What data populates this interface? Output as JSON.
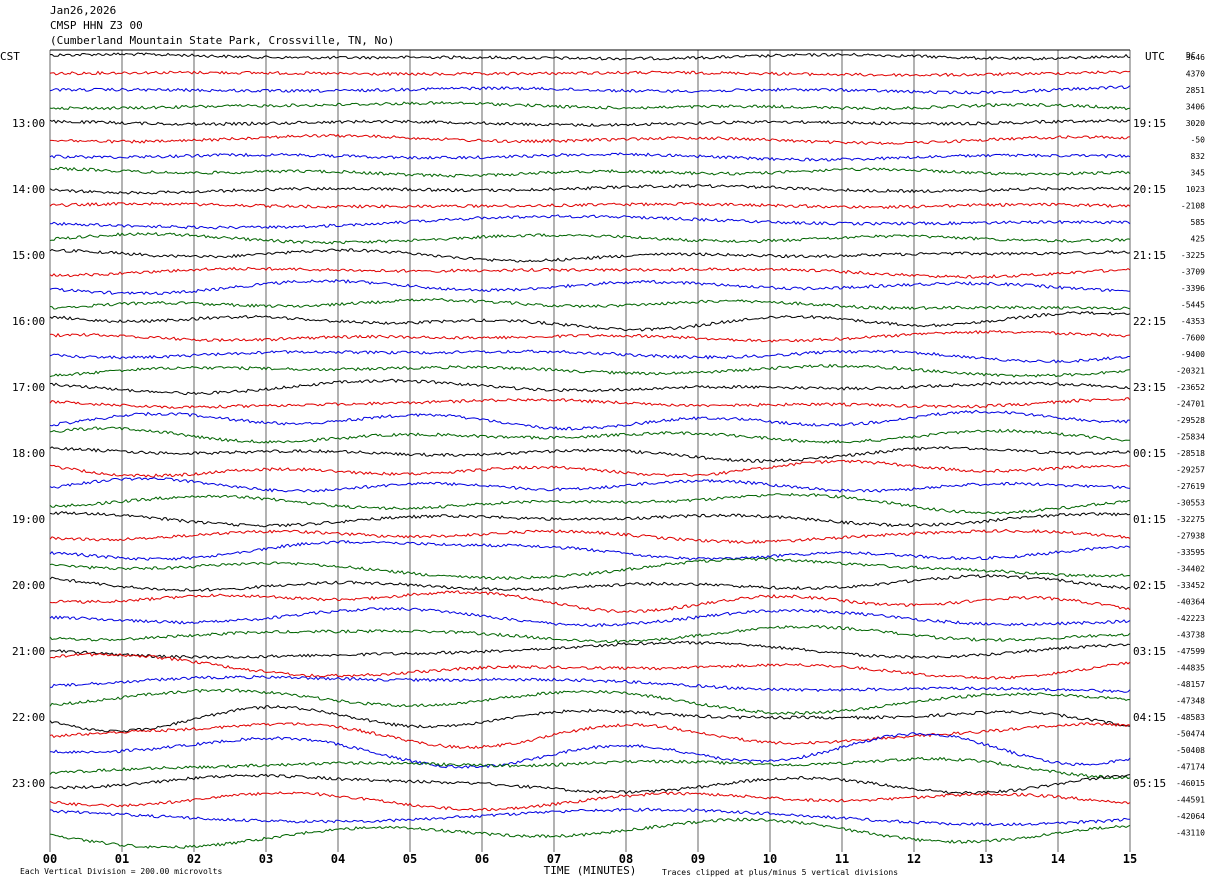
{
  "header": {
    "date": "Jan26,2026",
    "station": "CMSP HHN Z3 00",
    "location": "(Cumberland Mountain State Park, Crossville, TN, No)"
  },
  "left_tz": "CST",
  "right_tz": "UTC",
  "dc_header": "DC",
  "footer": {
    "scale": "Each Vertical Division =  200.00 microvolts",
    "clip": "Traces clipped at plus/minus 5 vertical divisions",
    "xlabel": "TIME (MINUTES)"
  },
  "colors": {
    "trace_cycle": [
      "#000000",
      "#e00000",
      "#0000e0",
      "#006400"
    ],
    "grid": "#000000",
    "text": "#000000"
  },
  "chart_data": {
    "type": "line",
    "title": "CMSP HHN Z3 00",
    "xlabel": "TIME (MINUTES)",
    "ylabel": "",
    "xlim": [
      0,
      15
    ],
    "x_ticks": [
      "00",
      "01",
      "02",
      "03",
      "04",
      "05",
      "06",
      "07",
      "08",
      "09",
      "10",
      "11",
      "12",
      "13",
      "14",
      "15"
    ],
    "rows_per_hour": 4,
    "row_interval_minutes": 15,
    "trace_count": 48,
    "left_hour_labels": [
      "13:00",
      "14:00",
      "15:00",
      "16:00",
      "17:00",
      "18:00",
      "19:00",
      "20:00",
      "21:00",
      "22:00",
      "23:00"
    ],
    "right_hour_labels": [
      "19:15",
      "20:15",
      "21:15",
      "22:15",
      "23:15",
      "00:15",
      "01:15",
      "02:15",
      "03:15",
      "04:15",
      "05:15"
    ],
    "dc_offsets": [
      3646,
      4370,
      2851,
      3406,
      3020,
      -50,
      832,
      345,
      1023,
      -2108,
      585,
      425,
      -3225,
      -3709,
      -3396,
      -5445,
      -4353,
      -7600,
      -9400,
      -20321,
      -23652,
      -24701,
      -29528,
      -25834,
      -28518,
      -29257,
      -27619,
      -30553,
      -32275,
      -27938,
      -33595,
      -34402,
      -33452,
      -40364,
      -42223,
      -43738,
      -47599,
      -44835,
      -48157,
      -47348,
      -48583,
      -50474,
      -50408,
      -47174,
      -46015,
      -44591,
      -42064,
      -43110
    ],
    "units": "microvolts per vertical division",
    "division_value": 200.0
  }
}
